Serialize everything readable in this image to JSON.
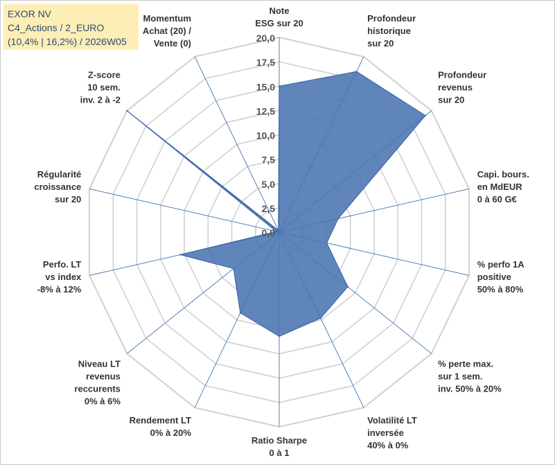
{
  "info_box": {
    "line1": "EXOR NV",
    "line2": "C4_Actions / 2_EURO",
    "line3": "(10,4% | 16,2%) / 2026W05"
  },
  "chart_data": {
    "type": "radar",
    "rmax": 20,
    "ticks": [
      "0,0",
      "2,5",
      "5,0",
      "7,5",
      "10,0",
      "12,5",
      "15,0",
      "17,5",
      "20,0"
    ],
    "tick_values": [
      0,
      2.5,
      5,
      7.5,
      10,
      12.5,
      15,
      17.5,
      20
    ],
    "gridlines": true,
    "colors": {
      "fill": "#4a74b2",
      "stroke": "#3f69a8",
      "grid": "#d0d0d0",
      "spoke": "#4f81bd"
    },
    "axes": [
      {
        "label": [
          "Note",
          "ESG sur 20"
        ],
        "value": 15.0
      },
      {
        "label": [
          "Profondeur",
          "historique",
          "sur 20"
        ],
        "value": 18.3
      },
      {
        "label": [
          "Profondeur",
          "revenus",
          "sur 20"
        ],
        "value": 19.2
      },
      {
        "label": [
          "Capi. bours.",
          "en MdEUR",
          "0 à 60 G€"
        ],
        "value": 6.2
      },
      {
        "label": [
          "% perfo 1A",
          "positive",
          "50% à 80%"
        ],
        "value": 5.0
      },
      {
        "label": [
          "% perte max.",
          "sur 1 sem.",
          "inv. 50% à 20%"
        ],
        "value": 9.0
      },
      {
        "label": [
          "Volatilité LT",
          "inversée",
          "40% à 0%"
        ],
        "value": 9.8
      },
      {
        "label": [
          "Ratio Sharpe",
          "0 à 1"
        ],
        "value": 10.7
      },
      {
        "label": [
          "Rendement LT",
          "0% à 20%"
        ],
        "value": 9.2
      },
      {
        "label": [
          "Niveau LT",
          "revenus",
          "reccurents",
          "0% à 6%"
        ],
        "value": 6.0
      },
      {
        "label": [
          "Perfo. LT",
          "vs index",
          "-8% à 12%"
        ],
        "value": 10.4
      },
      {
        "label": [
          "Régularité",
          "croissance",
          "sur 20"
        ],
        "value": 0.3
      },
      {
        "label": [
          "Z-score",
          "10 sem.",
          "inv. 2 à -2"
        ],
        "value": 20.0
      },
      {
        "label": [
          "Momentum",
          "Achat (20) /",
          "Vente (0)"
        ],
        "value": 0.2
      }
    ]
  }
}
